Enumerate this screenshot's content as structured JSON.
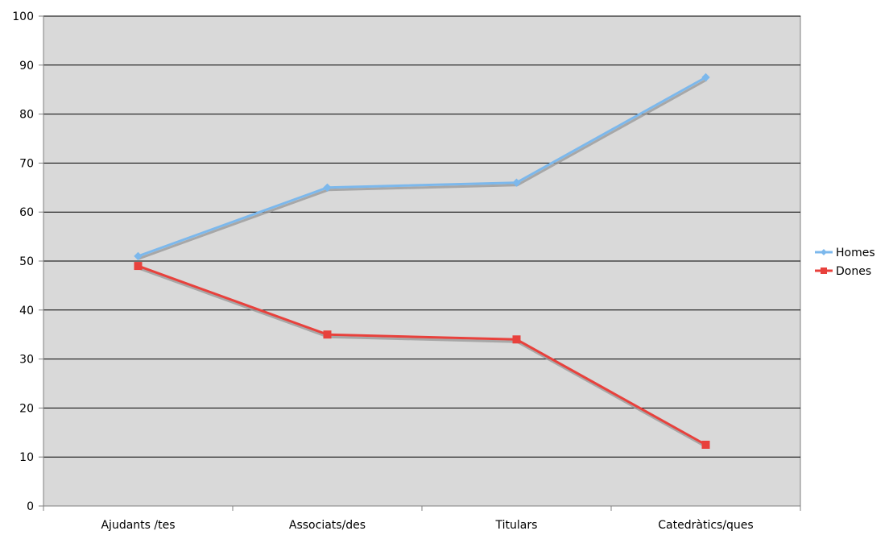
{
  "chart_data": {
    "type": "line",
    "title": "",
    "xlabel": "",
    "ylabel": "",
    "categories": [
      "Ajudants /tes",
      "Associats/des",
      "Titulars",
      "Catedràtics/ques"
    ],
    "series": [
      {
        "name": "Homes",
        "values": [
          51,
          65,
          66,
          87.5
        ],
        "color": "#7cb8ec",
        "marker": "diamond"
      },
      {
        "name": "Dones",
        "values": [
          49,
          35,
          34,
          12.5
        ],
        "color": "#e8413c",
        "marker": "square"
      }
    ],
    "ylim": [
      0,
      100
    ],
    "yticks": [
      0,
      10,
      20,
      30,
      40,
      50,
      60,
      70,
      80,
      90,
      100
    ],
    "grid": true,
    "plot_background": "#d9d9d9",
    "legend_position": "right"
  }
}
